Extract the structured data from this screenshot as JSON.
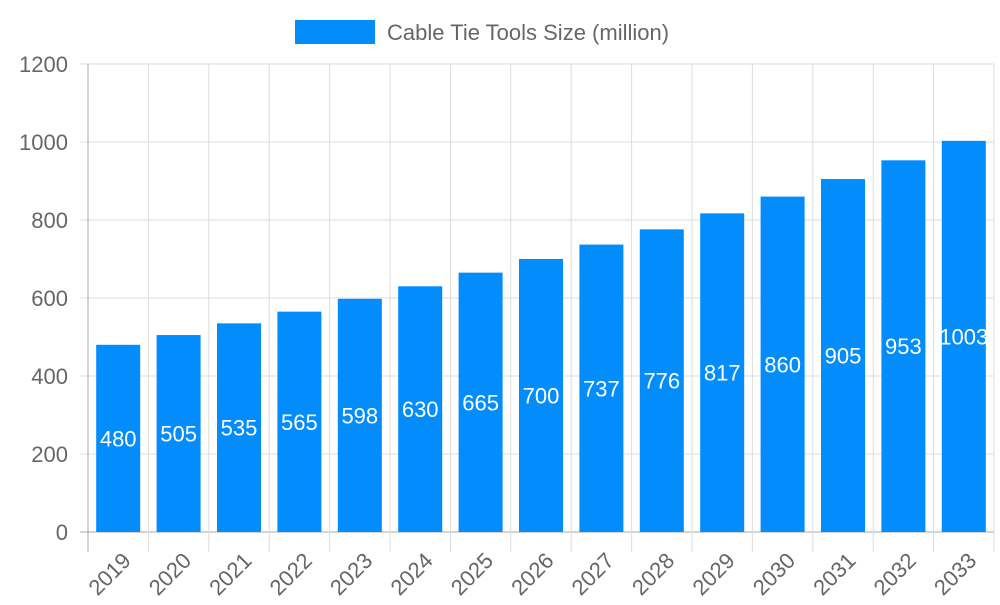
{
  "chart_data": {
    "type": "bar",
    "categories": [
      "2019",
      "2020",
      "2021",
      "2022",
      "2023",
      "2024",
      "2025",
      "2026",
      "2027",
      "2028",
      "2029",
      "2030",
      "2031",
      "2032",
      "2033"
    ],
    "series": [
      {
        "name": "Cable Tie Tools Size (million)",
        "values": [
          480,
          505,
          535,
          565,
          598,
          630,
          665,
          700,
          737,
          776,
          817,
          860,
          905,
          953,
          1003
        ]
      }
    ],
    "ylim": [
      0,
      1200
    ],
    "yticks": [
      0,
      200,
      400,
      600,
      800,
      1000,
      1200
    ],
    "grid": true,
    "legend": "top",
    "data_labels": true,
    "bar_color": "#038cfc",
    "text_color": "#666666"
  }
}
